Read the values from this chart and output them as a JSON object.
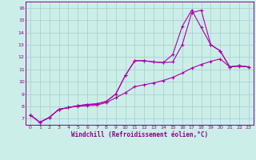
{
  "xlabel": "Windchill (Refroidissement éolien,°C)",
  "bg_color": "#cceee8",
  "grid_color": "#aacccc",
  "line_color": "#aa00aa",
  "spine_color": "#880088",
  "tick_color": "#880088",
  "xlim": [
    -0.5,
    23.5
  ],
  "ylim": [
    6.5,
    16.5
  ],
  "xticks": [
    0,
    1,
    2,
    3,
    4,
    5,
    6,
    7,
    8,
    9,
    10,
    11,
    12,
    13,
    14,
    15,
    16,
    17,
    18,
    19,
    20,
    21,
    22,
    23
  ],
  "yticks": [
    7,
    8,
    9,
    10,
    11,
    12,
    13,
    14,
    15,
    16
  ],
  "line1_x": [
    0,
    1,
    2,
    3,
    4,
    5,
    6,
    7,
    8,
    9,
    10,
    11,
    12,
    13,
    14,
    15,
    16,
    17,
    18,
    19,
    20,
    21,
    22,
    23
  ],
  "line1_y": [
    7.3,
    6.7,
    7.1,
    7.75,
    7.9,
    8.05,
    8.15,
    8.2,
    8.4,
    9.0,
    10.5,
    11.7,
    11.7,
    11.6,
    11.55,
    11.6,
    13.0,
    15.6,
    15.8,
    13.0,
    12.5,
    11.2,
    11.3,
    11.2
  ],
  "line2_x": [
    0,
    1,
    2,
    3,
    4,
    5,
    6,
    7,
    8,
    9,
    10,
    11,
    12,
    13,
    14,
    15,
    16,
    17,
    18,
    19,
    20,
    21,
    22,
    23
  ],
  "line2_y": [
    7.3,
    6.7,
    7.1,
    7.75,
    7.9,
    8.05,
    8.15,
    8.2,
    8.4,
    9.0,
    10.5,
    11.7,
    11.7,
    11.6,
    11.55,
    12.2,
    14.5,
    15.8,
    14.4,
    13.0,
    12.5,
    11.2,
    11.3,
    11.2
  ],
  "line3_x": [
    0,
    1,
    2,
    3,
    4,
    5,
    6,
    7,
    8,
    9,
    10,
    11,
    12,
    13,
    14,
    15,
    16,
    17,
    18,
    19,
    20,
    21,
    22,
    23
  ],
  "line3_y": [
    7.3,
    6.7,
    7.1,
    7.75,
    7.9,
    8.0,
    8.05,
    8.1,
    8.3,
    8.7,
    9.1,
    9.6,
    9.75,
    9.9,
    10.1,
    10.35,
    10.7,
    11.1,
    11.4,
    11.65,
    11.85,
    11.2,
    11.25,
    11.2
  ],
  "marker": "+",
  "markersize": 3,
  "linewidth": 0.8,
  "tick_fontsize": 4.5,
  "label_fontsize": 5.5
}
